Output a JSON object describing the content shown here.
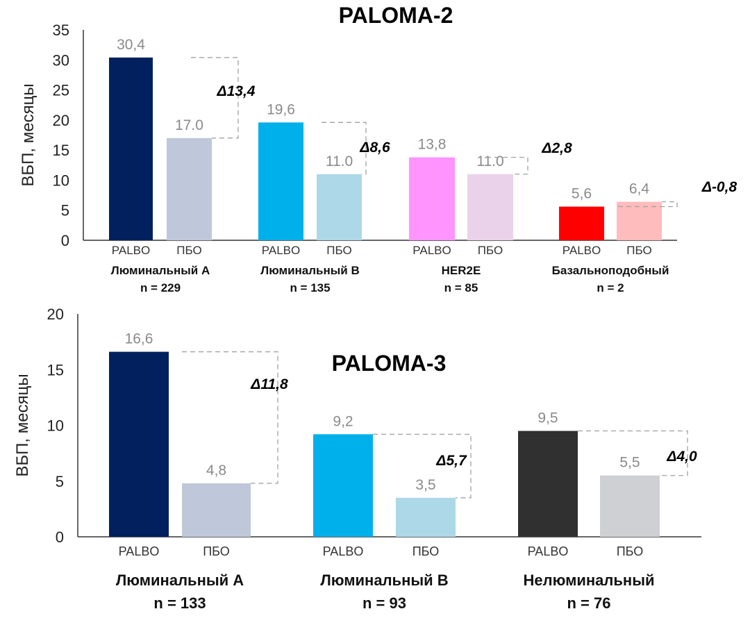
{
  "chart_data": [
    {
      "type": "bar",
      "title": "PALOMA-2",
      "ylabel": "ВБП, месяцы",
      "ylim": [
        0,
        35
      ],
      "yticks": [
        0,
        5,
        10,
        15,
        20,
        25,
        30,
        35
      ],
      "grid": false,
      "groups": [
        {
          "category": "Люминальный А",
          "n": "n = 229",
          "delta": "Δ13,4",
          "bars": [
            {
              "label": "PALBO",
              "value": 30.4,
              "value_label": "30,4",
              "color": "#03205e"
            },
            {
              "label": "ПБО",
              "value": 17.0,
              "value_label": "17.0",
              "color": "#bfc8da"
            }
          ]
        },
        {
          "category": "Люминальный В",
          "n": "n = 135",
          "delta": "Δ8,6",
          "bars": [
            {
              "label": "PALBO",
              "value": 19.6,
              "value_label": "19,6",
              "color": "#00b0eb"
            },
            {
              "label": "ПБО",
              "value": 11.0,
              "value_label": "11.0",
              "color": "#acd8e8"
            }
          ]
        },
        {
          "category": "HER2E",
          "n": "n = 85",
          "delta": "Δ2,8",
          "bars": [
            {
              "label": "PALBO",
              "value": 13.8,
              "value_label": "13,8",
              "color": "#ff94ff"
            },
            {
              "label": "ПБО",
              "value": 11.0,
              "value_label": "11.0",
              "color": "#e9d2ea"
            }
          ]
        },
        {
          "category": "Базальноподобный",
          "n": "n = 2",
          "delta": "Δ-0,8",
          "bars": [
            {
              "label": "PALBO",
              "value": 5.6,
              "value_label": "5,6",
              "color": "#ff0000"
            },
            {
              "label": "ПБО",
              "value": 6.4,
              "value_label": "6,4",
              "color": "#ffbcbc"
            }
          ]
        }
      ]
    },
    {
      "type": "bar",
      "title": "PALOMA-3",
      "ylabel": "ВБП, месяцы",
      "ylim": [
        0,
        20
      ],
      "yticks": [
        0,
        5,
        10,
        15,
        20
      ],
      "grid": false,
      "groups": [
        {
          "category": "Люминальный А",
          "n": "n = 133",
          "delta": "Δ11,8",
          "bars": [
            {
              "label": "PALBO",
              "value": 16.6,
              "value_label": "16,6",
              "color": "#03205e"
            },
            {
              "label": "ПБО",
              "value": 4.8,
              "value_label": "4,8",
              "color": "#bfc8da"
            }
          ]
        },
        {
          "category": "Люминальный В",
          "n": "n = 93",
          "delta": "Δ5,7",
          "bars": [
            {
              "label": "PALBO",
              "value": 9.2,
              "value_label": "9,2",
              "color": "#00b0eb"
            },
            {
              "label": "ПБО",
              "value": 3.5,
              "value_label": "3,5",
              "color": "#acd8e8"
            }
          ]
        },
        {
          "category": "Нелюминальный",
          "n": "n = 76",
          "delta": "Δ4,0",
          "bars": [
            {
              "label": "PALBO",
              "value": 9.5,
              "value_label": "9,5",
              "color": "#303030"
            },
            {
              "label": "ПБО",
              "value": 5.5,
              "value_label": "5,5",
              "color": "#cfd0d3"
            }
          ]
        }
      ]
    }
  ]
}
